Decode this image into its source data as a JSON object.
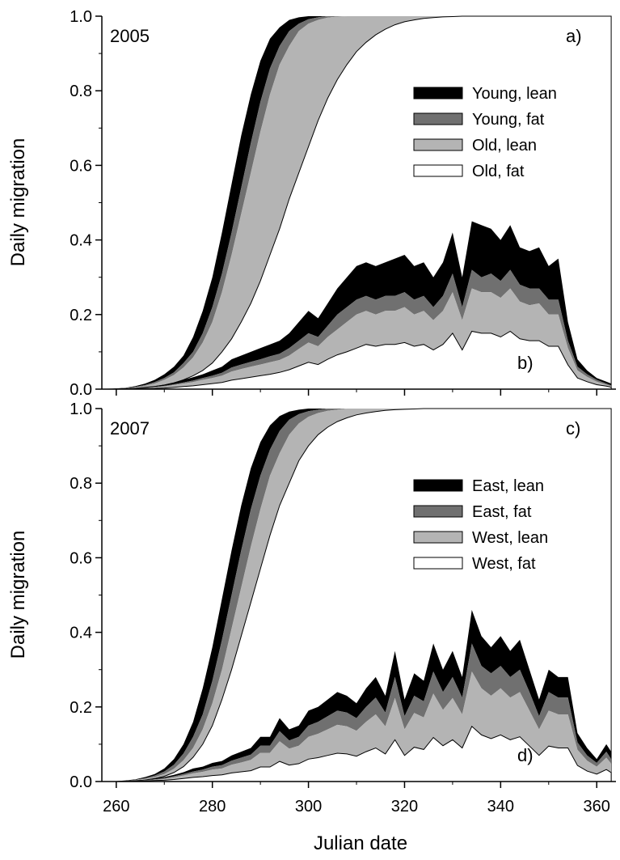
{
  "chart_data": {
    "type": "area",
    "xlabel": "Julian date",
    "ylabel": "Daily migration",
    "xlim": [
      257,
      364
    ],
    "ylim": [
      0,
      1.0
    ],
    "xticks": [
      260,
      280,
      300,
      320,
      340,
      360
    ],
    "yticks": [
      "0.0",
      "0.2",
      "0.4",
      "0.6",
      "0.8",
      "1.0"
    ],
    "x": [
      258,
      260,
      262,
      264,
      266,
      268,
      270,
      272,
      274,
      276,
      278,
      280,
      282,
      284,
      286,
      288,
      290,
      292,
      294,
      296,
      298,
      300,
      302,
      304,
      306,
      308,
      310,
      312,
      314,
      316,
      318,
      320,
      322,
      324,
      326,
      328,
      330,
      332,
      334,
      336,
      338,
      340,
      342,
      344,
      346,
      348,
      350,
      352,
      354,
      356,
      358,
      360,
      362,
      363
    ],
    "panels": [
      {
        "year": "2005",
        "cumulative_label": "a)",
        "daily_label": "b)",
        "legend": [
          {
            "name": "Young, lean",
            "color": "#000000"
          },
          {
            "name": "Young, fat",
            "color": "#707070"
          },
          {
            "name": "Old, lean",
            "color": "#b4b4b4"
          },
          {
            "name": "Old, fat",
            "color": "#ffffff"
          }
        ],
        "cumulative_boundaries": {
          "young_lean_upper": [
            0,
            0.002,
            0.004,
            0.008,
            0.015,
            0.025,
            0.04,
            0.06,
            0.09,
            0.14,
            0.21,
            0.3,
            0.42,
            0.55,
            0.68,
            0.79,
            0.88,
            0.94,
            0.97,
            0.99,
            0.997,
            1,
            1,
            1,
            1,
            1,
            1,
            1,
            1,
            1,
            1,
            1,
            1,
            1,
            1,
            1,
            1,
            1,
            1,
            1,
            1,
            1,
            1,
            1,
            1,
            1,
            1,
            1,
            1,
            1,
            1,
            1,
            1,
            1
          ],
          "young_fat_upper": [
            0,
            0.001,
            0.003,
            0.006,
            0.011,
            0.019,
            0.03,
            0.045,
            0.07,
            0.1,
            0.15,
            0.22,
            0.31,
            0.42,
            0.54,
            0.66,
            0.77,
            0.86,
            0.92,
            0.96,
            0.98,
            0.992,
            0.997,
            1,
            1,
            1,
            1,
            1,
            1,
            1,
            1,
            1,
            1,
            1,
            1,
            1,
            1,
            1,
            1,
            1,
            1,
            1,
            1,
            1,
            1,
            1,
            1,
            1,
            1,
            1,
            1,
            1,
            1,
            1
          ],
          "old_lean_upper": [
            0,
            0.001,
            0.002,
            0.005,
            0.009,
            0.015,
            0.025,
            0.038,
            0.058,
            0.085,
            0.125,
            0.18,
            0.26,
            0.36,
            0.47,
            0.58,
            0.69,
            0.79,
            0.87,
            0.92,
            0.96,
            0.98,
            0.99,
            0.996,
            0.999,
            1,
            1,
            1,
            1,
            1,
            1,
            1,
            1,
            1,
            1,
            1,
            1,
            1,
            1,
            1,
            1,
            1,
            1,
            1,
            1,
            1,
            1,
            1,
            1,
            1,
            1,
            1,
            1,
            1
          ],
          "old_fat_upper": [
            0,
            0.0005,
            0.001,
            0.002,
            0.004,
            0.007,
            0.011,
            0.017,
            0.025,
            0.036,
            0.05,
            0.07,
            0.1,
            0.135,
            0.18,
            0.23,
            0.29,
            0.36,
            0.43,
            0.51,
            0.58,
            0.65,
            0.72,
            0.78,
            0.83,
            0.87,
            0.905,
            0.93,
            0.95,
            0.965,
            0.977,
            0.985,
            0.99,
            0.994,
            0.996,
            0.998,
            0.999,
            1,
            1,
            1,
            1,
            1,
            1,
            1,
            1,
            1,
            1,
            1,
            1,
            1,
            1,
            1,
            1,
            1
          ]
        },
        "daily_boundaries": {
          "young_lean_upper": [
            0,
            0,
            0.002,
            0.004,
            0.006,
            0.008,
            0.012,
            0.018,
            0.025,
            0.032,
            0.04,
            0.05,
            0.06,
            0.08,
            0.09,
            0.1,
            0.11,
            0.12,
            0.13,
            0.15,
            0.18,
            0.21,
            0.19,
            0.23,
            0.27,
            0.3,
            0.33,
            0.34,
            0.33,
            0.34,
            0.35,
            0.36,
            0.33,
            0.34,
            0.3,
            0.34,
            0.42,
            0.3,
            0.45,
            0.44,
            0.43,
            0.4,
            0.44,
            0.38,
            0.37,
            0.38,
            0.33,
            0.35,
            0.18,
            0.08,
            0.05,
            0.03,
            0.02,
            0.015
          ],
          "young_fat_upper": [
            0,
            0,
            0.001,
            0.003,
            0.004,
            0.006,
            0.009,
            0.013,
            0.018,
            0.023,
            0.03,
            0.036,
            0.044,
            0.058,
            0.066,
            0.073,
            0.08,
            0.088,
            0.095,
            0.11,
            0.13,
            0.15,
            0.14,
            0.17,
            0.2,
            0.22,
            0.24,
            0.25,
            0.24,
            0.25,
            0.25,
            0.26,
            0.24,
            0.25,
            0.22,
            0.25,
            0.31,
            0.22,
            0.32,
            0.3,
            0.31,
            0.29,
            0.32,
            0.28,
            0.27,
            0.27,
            0.24,
            0.24,
            0.13,
            0.06,
            0.04,
            0.025,
            0.015,
            0.01
          ],
          "old_lean_upper": [
            0,
            0,
            0.001,
            0.002,
            0.003,
            0.005,
            0.007,
            0.011,
            0.015,
            0.019,
            0.025,
            0.03,
            0.036,
            0.047,
            0.054,
            0.06,
            0.066,
            0.072,
            0.078,
            0.09,
            0.108,
            0.125,
            0.115,
            0.14,
            0.16,
            0.18,
            0.2,
            0.21,
            0.2,
            0.21,
            0.21,
            0.22,
            0.2,
            0.21,
            0.185,
            0.21,
            0.26,
            0.185,
            0.27,
            0.26,
            0.26,
            0.245,
            0.27,
            0.235,
            0.225,
            0.23,
            0.2,
            0.2,
            0.11,
            0.05,
            0.033,
            0.02,
            0.012,
            0.008
          ],
          "old_fat_upper": [
            0,
            0,
            0.0005,
            0.001,
            0.0015,
            0.002,
            0.003,
            0.005,
            0.007,
            0.009,
            0.012,
            0.015,
            0.018,
            0.024,
            0.028,
            0.032,
            0.036,
            0.04,
            0.045,
            0.052,
            0.062,
            0.072,
            0.066,
            0.08,
            0.092,
            0.1,
            0.11,
            0.12,
            0.115,
            0.12,
            0.12,
            0.125,
            0.115,
            0.12,
            0.105,
            0.12,
            0.15,
            0.105,
            0.155,
            0.15,
            0.15,
            0.14,
            0.155,
            0.135,
            0.13,
            0.13,
            0.115,
            0.115,
            0.065,
            0.03,
            0.02,
            0.012,
            0.008,
            0.005
          ]
        }
      },
      {
        "year": "2007",
        "cumulative_label": "c)",
        "daily_label": "d)",
        "legend": [
          {
            "name": "East, lean",
            "color": "#000000"
          },
          {
            "name": "East, fat",
            "color": "#707070"
          },
          {
            "name": "West, lean",
            "color": "#b4b4b4"
          },
          {
            "name": "West, fat",
            "color": "#ffffff"
          }
        ],
        "cumulative_boundaries": {
          "east_lean_upper": [
            0,
            0.001,
            0.003,
            0.006,
            0.012,
            0.02,
            0.035,
            0.06,
            0.1,
            0.16,
            0.25,
            0.36,
            0.49,
            0.62,
            0.74,
            0.84,
            0.91,
            0.955,
            0.98,
            0.992,
            0.997,
            1,
            1,
            1,
            1,
            1,
            1,
            1,
            1,
            1,
            1,
            1,
            1,
            1,
            1,
            1,
            1,
            1,
            1,
            1,
            1,
            1,
            1,
            1,
            1,
            1,
            1,
            1,
            1,
            1,
            1,
            1,
            1,
            1
          ],
          "east_fat_upper": [
            0,
            0.001,
            0.002,
            0.005,
            0.009,
            0.016,
            0.027,
            0.045,
            0.075,
            0.12,
            0.18,
            0.27,
            0.38,
            0.5,
            0.62,
            0.73,
            0.82,
            0.89,
            0.94,
            0.97,
            0.985,
            0.993,
            0.997,
            1,
            1,
            1,
            1,
            1,
            1,
            1,
            1,
            1,
            1,
            1,
            1,
            1,
            1,
            1,
            1,
            1,
            1,
            1,
            1,
            1,
            1,
            1,
            1,
            1,
            1,
            1,
            1,
            1,
            1,
            1
          ],
          "west_lean_upper": [
            0,
            0,
            0.002,
            0.004,
            0.007,
            0.012,
            0.02,
            0.034,
            0.057,
            0.09,
            0.14,
            0.21,
            0.3,
            0.41,
            0.52,
            0.63,
            0.73,
            0.82,
            0.88,
            0.93,
            0.96,
            0.978,
            0.988,
            0.994,
            0.997,
            1,
            1,
            1,
            1,
            1,
            1,
            1,
            1,
            1,
            1,
            1,
            1,
            1,
            1,
            1,
            1,
            1,
            1,
            1,
            1,
            1,
            1,
            1,
            1,
            1,
            1,
            1,
            1,
            1
          ],
          "west_fat_upper": [
            0,
            0,
            0.001,
            0.002,
            0.004,
            0.008,
            0.014,
            0.024,
            0.04,
            0.065,
            0.1,
            0.15,
            0.22,
            0.3,
            0.39,
            0.48,
            0.57,
            0.66,
            0.74,
            0.8,
            0.86,
            0.9,
            0.93,
            0.95,
            0.965,
            0.975,
            0.983,
            0.988,
            0.992,
            0.995,
            0.997,
            0.998,
            0.999,
            1,
            1,
            1,
            1,
            1,
            1,
            1,
            1,
            1,
            1,
            1,
            1,
            1,
            1,
            1,
            1,
            1,
            1,
            1,
            1,
            1
          ]
        },
        "daily_boundaries": {
          "east_lean_upper": [
            0,
            0,
            0.002,
            0.003,
            0.005,
            0.008,
            0.012,
            0.018,
            0.025,
            0.035,
            0.04,
            0.05,
            0.055,
            0.07,
            0.08,
            0.09,
            0.12,
            0.12,
            0.17,
            0.14,
            0.15,
            0.19,
            0.2,
            0.22,
            0.24,
            0.23,
            0.21,
            0.25,
            0.28,
            0.23,
            0.35,
            0.22,
            0.29,
            0.27,
            0.37,
            0.3,
            0.35,
            0.28,
            0.46,
            0.39,
            0.36,
            0.39,
            0.35,
            0.38,
            0.3,
            0.22,
            0.3,
            0.28,
            0.28,
            0.13,
            0.09,
            0.06,
            0.1,
            0.08
          ],
          "east_fat_upper": [
            0,
            0,
            0.0015,
            0.002,
            0.004,
            0.006,
            0.009,
            0.014,
            0.02,
            0.027,
            0.032,
            0.04,
            0.044,
            0.056,
            0.064,
            0.072,
            0.096,
            0.096,
            0.135,
            0.11,
            0.12,
            0.15,
            0.16,
            0.175,
            0.19,
            0.185,
            0.17,
            0.2,
            0.225,
            0.185,
            0.28,
            0.175,
            0.23,
            0.215,
            0.295,
            0.24,
            0.28,
            0.225,
            0.37,
            0.31,
            0.29,
            0.31,
            0.28,
            0.3,
            0.24,
            0.175,
            0.24,
            0.225,
            0.225,
            0.105,
            0.07,
            0.05,
            0.08,
            0.06
          ],
          "west_lean_upper": [
            0,
            0,
            0.001,
            0.0015,
            0.003,
            0.005,
            0.007,
            0.011,
            0.016,
            0.022,
            0.026,
            0.032,
            0.035,
            0.045,
            0.051,
            0.058,
            0.077,
            0.077,
            0.108,
            0.088,
            0.096,
            0.12,
            0.128,
            0.14,
            0.152,
            0.148,
            0.136,
            0.16,
            0.18,
            0.148,
            0.224,
            0.14,
            0.184,
            0.172,
            0.236,
            0.192,
            0.224,
            0.18,
            0.295,
            0.25,
            0.23,
            0.25,
            0.225,
            0.24,
            0.19,
            0.14,
            0.19,
            0.18,
            0.18,
            0.085,
            0.056,
            0.04,
            0.064,
            0.048
          ],
          "west_fat_upper": [
            0,
            0,
            0.0005,
            0.001,
            0.0015,
            0.0025,
            0.0035,
            0.0055,
            0.008,
            0.011,
            0.013,
            0.016,
            0.018,
            0.023,
            0.026,
            0.029,
            0.039,
            0.039,
            0.054,
            0.044,
            0.048,
            0.06,
            0.064,
            0.07,
            0.076,
            0.074,
            0.068,
            0.08,
            0.09,
            0.074,
            0.112,
            0.07,
            0.092,
            0.086,
            0.118,
            0.096,
            0.112,
            0.09,
            0.148,
            0.125,
            0.115,
            0.125,
            0.112,
            0.12,
            0.095,
            0.07,
            0.095,
            0.09,
            0.09,
            0.043,
            0.028,
            0.02,
            0.032,
            0.024
          ]
        }
      }
    ]
  }
}
